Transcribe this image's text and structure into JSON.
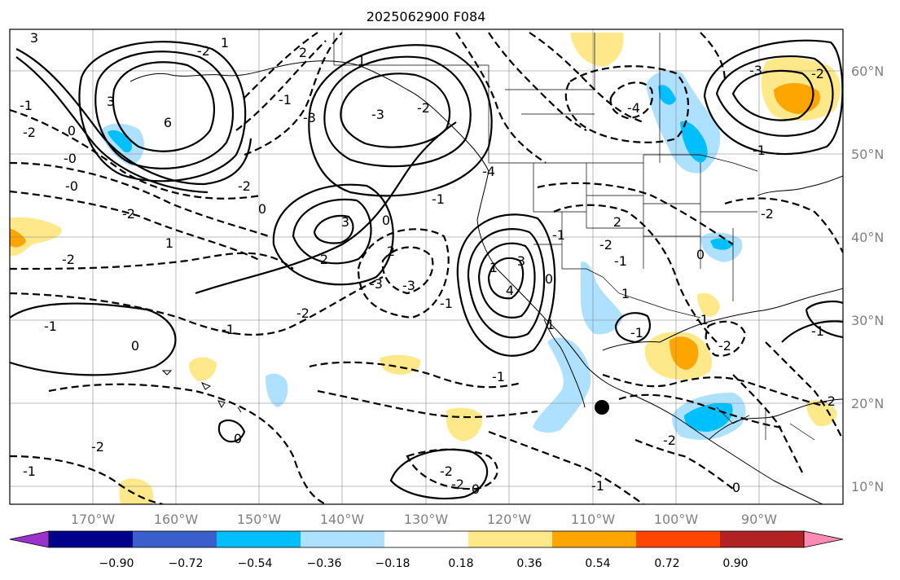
{
  "title": "2025062900 F084",
  "lon_labels": [
    "170°W",
    "160°W",
    "150°W",
    "140°W",
    "130°W",
    "120°W",
    "110°W",
    "100°W",
    "90°W"
  ],
  "lat_labels": [
    "60°N",
    "50°N",
    "40°N",
    "30°N",
    "20°N",
    "10°N"
  ],
  "colorbar": {
    "ticks": [
      "−0.90",
      "−0.72",
      "−0.54",
      "−0.36",
      "−0.18",
      "0.18",
      "0.36",
      "0.54",
      "0.72",
      "0.90"
    ],
    "colors": [
      "#9a32cd",
      "#00008b",
      "#3a5fcd",
      "#00bfff",
      "#aee0ff",
      "#ffffff",
      "#ffe88a",
      "#ffa500",
      "#ff4500",
      "#b22222",
      "#ff8ab4"
    ]
  },
  "contour_labels": [
    "3",
    "-1",
    "-2",
    "0",
    "-0",
    "-0",
    "-2",
    "-1",
    "-2",
    "6",
    "3",
    "-2",
    "1",
    "2",
    "-1",
    "0",
    "2",
    "3",
    "-1",
    "-2",
    "2",
    "-1",
    "-3",
    "-3",
    "-3",
    "0",
    "-1",
    "-2",
    "-1",
    "0",
    "-4",
    "2",
    "-2",
    "-1",
    "0",
    "3",
    "4",
    "1",
    "-3",
    "-2",
    "-4",
    "-3",
    "-2",
    "-1",
    "-2",
    "-1",
    "0",
    "1",
    "-1",
    "-1",
    "-2",
    "-2",
    "0",
    "-1",
    "-2",
    "-2",
    "-2",
    "1",
    "-1",
    "-2",
    "1",
    "0",
    "0",
    "-1",
    "1"
  ]
}
